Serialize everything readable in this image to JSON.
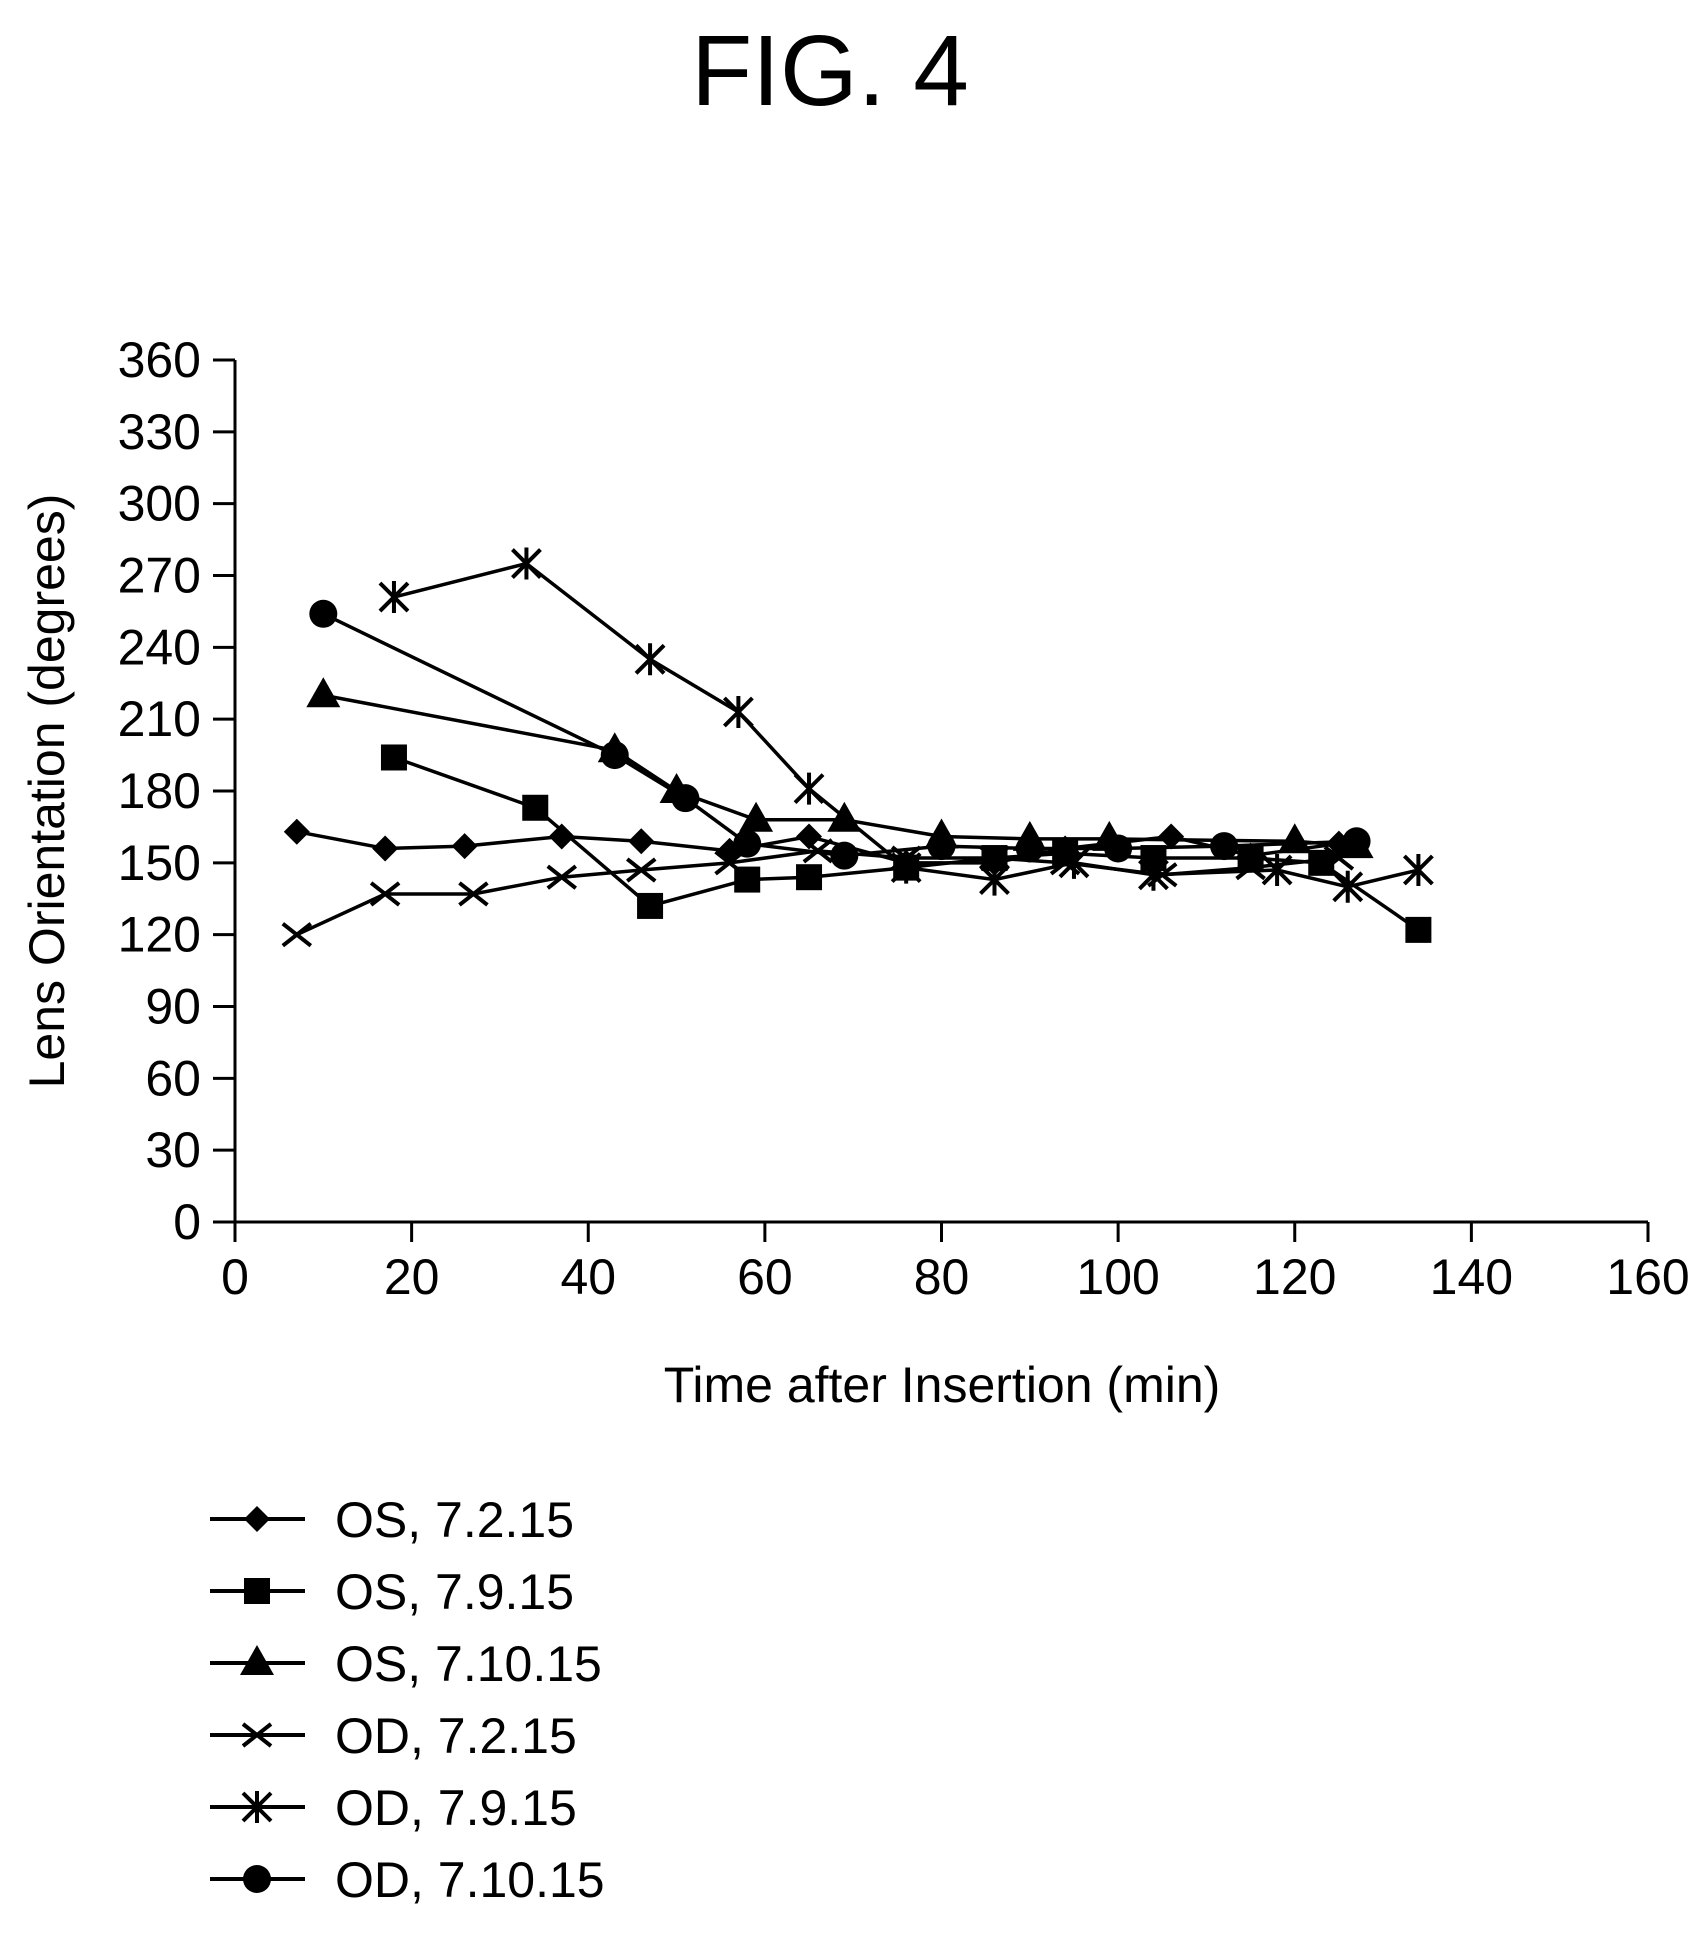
{
  "figure": {
    "title": "FIG. 4"
  },
  "chart_data": {
    "type": "line",
    "title": "",
    "xlabel": "Time after Insertion (min)",
    "ylabel": "Lens Orientation (degrees)",
    "xlim": [
      0,
      160
    ],
    "ylim": [
      0,
      360
    ],
    "xticks": [
      0,
      20,
      40,
      60,
      80,
      100,
      120,
      140,
      160
    ],
    "yticks": [
      0,
      30,
      60,
      90,
      120,
      150,
      180,
      210,
      240,
      270,
      300,
      330,
      360
    ],
    "grid": false,
    "legend_position": "bottom-left",
    "series": [
      {
        "name": "OS, 7.2.15",
        "marker": "diamond",
        "x": [
          7,
          17,
          26,
          37,
          46,
          56,
          65,
          76,
          86,
          94,
          106,
          115,
          125
        ],
        "y": [
          163,
          156,
          157,
          161,
          159,
          155,
          161,
          150,
          150,
          156,
          161,
          153,
          158
        ]
      },
      {
        "name": "OS, 7.9.15",
        "marker": "square",
        "x": [
          18,
          34,
          47,
          58,
          65,
          76,
          86,
          94,
          104,
          115,
          123,
          134
        ],
        "y": [
          194,
          173,
          132,
          143,
          144,
          148,
          152,
          154,
          152,
          152,
          150,
          122
        ]
      },
      {
        "name": "OS, 7.10.15",
        "marker": "triangle",
        "x": [
          10,
          43,
          50,
          59,
          69,
          80,
          90,
          99,
          120,
          127
        ],
        "y": [
          220,
          197,
          180,
          168,
          168,
          161,
          160,
          160,
          159,
          157
        ]
      },
      {
        "name": "OD, 7.2.15",
        "marker": "x",
        "x": [
          7,
          17,
          27,
          37,
          46,
          56,
          66,
          76,
          86,
          94,
          105,
          115,
          125
        ],
        "y": [
          120,
          137,
          137,
          144,
          147,
          150,
          155,
          152,
          152,
          150,
          145,
          148,
          152
        ]
      },
      {
        "name": "OD, 7.9.15",
        "marker": "asterisk",
        "x": [
          18,
          33,
          47,
          57,
          65,
          76,
          86,
          95,
          104,
          118,
          126,
          134
        ],
        "y": [
          261,
          275,
          235,
          213,
          181,
          148,
          143,
          150,
          145,
          147,
          140,
          147
        ]
      },
      {
        "name": "OD, 7.10.15",
        "marker": "circle",
        "x": [
          10,
          43,
          51,
          58,
          69,
          80,
          90,
          100,
          112,
          127
        ],
        "y": [
          254,
          195,
          177,
          158,
          153,
          157,
          156,
          156,
          157,
          159
        ]
      }
    ]
  }
}
